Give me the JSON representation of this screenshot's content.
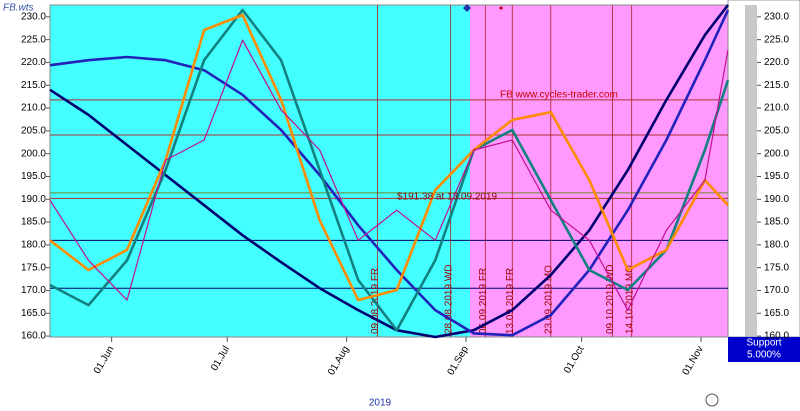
{
  "chart_data": {
    "type": "line",
    "title": "FB.wts",
    "annotation": "FB www.cycles-trader.com",
    "price_note": "$191.38 at 13.09.2019",
    "year_label": "2019",
    "support": {
      "label": "Support",
      "percent": "5.000%"
    },
    "x": [
      "2019-05-16",
      "2019-05-26",
      "2019-06-05",
      "2019-06-15",
      "2019-06-25",
      "2019-07-05",
      "2019-07-15",
      "2019-07-25",
      "2019-08-04",
      "2019-08-14",
      "2019-08-24",
      "2019-09-03",
      "2019-09-13",
      "2019-09-23",
      "2019-10-03",
      "2019-10-13",
      "2019-10-23",
      "2019-11-02",
      "2019-11-08"
    ],
    "xlim": [
      "2019-05-16",
      "2019-11-08"
    ],
    "xticks": [
      {
        "value": "2019-06-01",
        "label": "01.Jun"
      },
      {
        "value": "2019-07-01",
        "label": "01.Jul"
      },
      {
        "value": "2019-08-01",
        "label": "01.Aug"
      },
      {
        "value": "2019-09-01",
        "label": "01.Sep"
      },
      {
        "value": "2019-10-01",
        "label": "01.Oct"
      },
      {
        "value": "2019-11-01",
        "label": "01.Nov"
      }
    ],
    "ylim": [
      159.8,
      232.6
    ],
    "yticks": [
      {
        "value": 160,
        "label": "160.0"
      },
      {
        "value": 165,
        "label": "165.0"
      },
      {
        "value": 170,
        "label": "170.0"
      },
      {
        "value": 175,
        "label": "175.0"
      },
      {
        "value": 180,
        "label": "180.0"
      },
      {
        "value": 185,
        "label": "185.0"
      },
      {
        "value": 190,
        "label": "190.0"
      },
      {
        "value": 195,
        "label": "195.0"
      },
      {
        "value": 200,
        "label": "200.0"
      },
      {
        "value": 205,
        "label": "205.0"
      },
      {
        "value": 210,
        "label": "210.0"
      },
      {
        "value": 215,
        "label": "215.0"
      },
      {
        "value": 220,
        "label": "220.0"
      },
      {
        "value": 225,
        "label": "225.0"
      },
      {
        "value": 230,
        "label": "230.0"
      }
    ],
    "series": [
      {
        "color": "#000070",
        "values": [
          214.0,
          208.5,
          201.9,
          195.3,
          188.7,
          182.1,
          176.2,
          170.5,
          165.7,
          161.3,
          159.8,
          161.3,
          165.7,
          173.4,
          183.2,
          196.4,
          211.8,
          226.0,
          232.6
        ]
      },
      {
        "color": "#2222bb",
        "values": [
          219.4,
          220.5,
          221.2,
          220.5,
          218.3,
          212.9,
          205.2,
          195.3,
          184.3,
          174.5,
          165.7,
          160.6,
          160.2,
          164.6,
          174.5,
          187.6,
          203.0,
          220.5,
          231.5
        ]
      },
      {
        "color": "#138080",
        "values": [
          171.2,
          166.8,
          176.6,
          196.4,
          220.5,
          231.5,
          220.5,
          196.4,
          172.3,
          161.3,
          176.6,
          200.8,
          205.2,
          189.8,
          174.5,
          170.1,
          178.9,
          200.8,
          216.1
        ]
      },
      {
        "color": "#ff8c00",
        "values": [
          181.0,
          174.5,
          178.9,
          198.6,
          227.1,
          230.4,
          211.8,
          185.4,
          167.9,
          170.1,
          192.0,
          200.8,
          207.4,
          209.1,
          194.2,
          174.5,
          178.9,
          194.2,
          188.7
        ]
      },
      {
        "color": "#c01090",
        "values": [
          189.8,
          176.6,
          167.9,
          198.6,
          203.0,
          224.9,
          209.6,
          200.8,
          181.0,
          187.6,
          181.0,
          200.8,
          203.0,
          187.6,
          181.0,
          165.7,
          183.2,
          194.2,
          222.8
        ]
      }
    ],
    "levels": [
      {
        "value": 211.8,
        "color": "#b03030"
      },
      {
        "value": 204.1,
        "color": "#b03030"
      },
      {
        "value": 191.4,
        "color": "#6a8a2a"
      },
      {
        "value": 190.2,
        "color": "#b03030"
      },
      {
        "value": 181.0,
        "color": "#000070"
      },
      {
        "value": 170.5,
        "color": "#000070"
      }
    ],
    "cycle_lines": [
      {
        "x": "2019-08-09",
        "label": "09.08.2019 FR"
      },
      {
        "x": "2019-08-28",
        "label": "28.08.2019 WD"
      },
      {
        "x": "2019-09-06",
        "label": "06.09.2019 FR"
      },
      {
        "x": "2019-09-13",
        "label": "13.09.2019 FR"
      },
      {
        "x": "2019-09-23",
        "label": "23.09.2019 MO"
      },
      {
        "x": "2019-10-09",
        "label": "09.10.2019 WD"
      },
      {
        "x": "2019-10-14",
        "label": "14.10.2019 MO"
      }
    ]
  }
}
